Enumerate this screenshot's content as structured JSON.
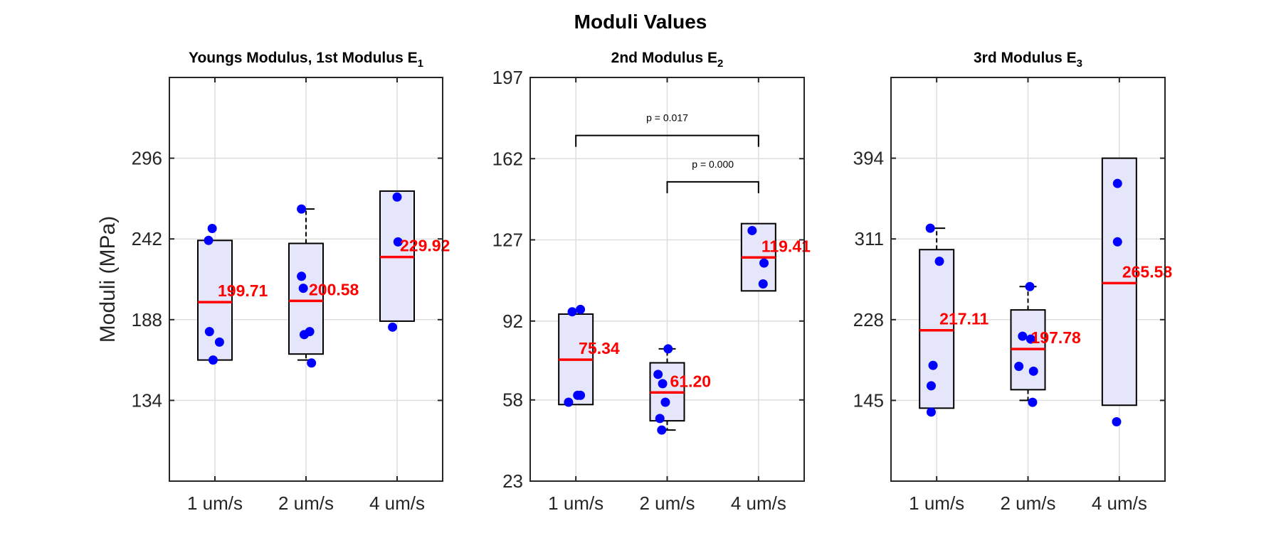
{
  "figure_title": "Moduli Values",
  "colors": {
    "box_fill": "#e6e6fa",
    "box_edge": "#000000",
    "median": "#ff0000",
    "points": "#0000ff",
    "grid": "#dedede"
  },
  "chart_data": [
    {
      "type": "box",
      "title": "Youngs Modulus, 1st Modulus E",
      "title_sub": "1",
      "ylabel": "Moduli (MPa)",
      "ylim": [
        80,
        350
      ],
      "yticks": [
        134,
        188,
        242,
        296
      ],
      "categories": [
        "1 um/s",
        "2 um/s",
        "4 um/s"
      ],
      "grid": true,
      "boxes": [
        {
          "q1": 161,
          "q3": 241,
          "median": 199.71,
          "whisker_low": 161,
          "whisker_high": 241
        },
        {
          "q1": 165,
          "q3": 239,
          "median": 200.58,
          "whisker_low": 161,
          "whisker_high": 262
        },
        {
          "q1": 187,
          "q3": 274,
          "median": 229.92,
          "whisker_low": 187,
          "whisker_high": 274
        }
      ],
      "points": [
        [
          {
            "jitter": -0.03,
            "y": 249
          },
          {
            "jitter": -0.07,
            "y": 241
          },
          {
            "jitter": -0.06,
            "y": 180
          },
          {
            "jitter": 0.05,
            "y": 173
          },
          {
            "jitter": -0.02,
            "y": 161
          }
        ],
        [
          {
            "jitter": -0.05,
            "y": 262
          },
          {
            "jitter": -0.05,
            "y": 217
          },
          {
            "jitter": -0.03,
            "y": 209
          },
          {
            "jitter": 0.04,
            "y": 180
          },
          {
            "jitter": -0.02,
            "y": 178
          },
          {
            "jitter": 0.06,
            "y": 159
          }
        ],
        [
          {
            "jitter": 0.0,
            "y": 270
          },
          {
            "jitter": 0.01,
            "y": 240
          },
          {
            "jitter": -0.05,
            "y": 183
          }
        ]
      ],
      "median_labels": [
        "199.71",
        "200.58",
        "229.92"
      ],
      "significance": []
    },
    {
      "type": "box",
      "title": "2nd Modulus E",
      "title_sub": "2",
      "ylabel": "",
      "ylim": [
        23,
        197
      ],
      "yticks": [
        23,
        58,
        92,
        127,
        162,
        197
      ],
      "categories": [
        "1 um/s",
        "2 um/s",
        "4 um/s"
      ],
      "grid": true,
      "boxes": [
        {
          "q1": 56,
          "q3": 95,
          "median": 75.34,
          "whisker_low": 56,
          "whisker_high": 95
        },
        {
          "q1": 49,
          "q3": 74,
          "median": 61.2,
          "whisker_low": 45,
          "whisker_high": 80
        },
        {
          "q1": 105,
          "q3": 134,
          "median": 119.41,
          "whisker_low": 105,
          "whisker_high": 134
        }
      ],
      "points": [
        [
          {
            "jitter": 0.05,
            "y": 97
          },
          {
            "jitter": -0.04,
            "y": 96
          },
          {
            "jitter": 0.05,
            "y": 60
          },
          {
            "jitter": 0.02,
            "y": 60
          },
          {
            "jitter": -0.08,
            "y": 57
          }
        ],
        [
          {
            "jitter": 0.01,
            "y": 80
          },
          {
            "jitter": -0.1,
            "y": 69
          },
          {
            "jitter": -0.05,
            "y": 65
          },
          {
            "jitter": -0.02,
            "y": 57
          },
          {
            "jitter": -0.08,
            "y": 50
          },
          {
            "jitter": -0.06,
            "y": 45
          }
        ],
        [
          {
            "jitter": -0.07,
            "y": 131
          },
          {
            "jitter": 0.06,
            "y": 117
          },
          {
            "jitter": 0.05,
            "y": 108
          }
        ]
      ],
      "median_labels": [
        "75.34",
        "61.20",
        "119.41"
      ],
      "significance": [
        {
          "from": 0,
          "to": 2,
          "label": "p = 0.017",
          "y": 172
        },
        {
          "from": 1,
          "to": 2,
          "label": "p = 0.000",
          "y": 152
        }
      ]
    },
    {
      "type": "box",
      "title": "3rd Modulus E",
      "title_sub": "3",
      "ylabel": "",
      "ylim": [
        62,
        477
      ],
      "yticks": [
        145,
        228,
        311,
        394
      ],
      "categories": [
        "1 um/s",
        "2 um/s",
        "4 um/s"
      ],
      "grid": true,
      "boxes": [
        {
          "q1": 137,
          "q3": 300,
          "median": 217.11,
          "whisker_low": 137,
          "whisker_high": 322
        },
        {
          "q1": 156,
          "q3": 238,
          "median": 197.78,
          "whisker_low": 145,
          "whisker_high": 262
        },
        {
          "q1": 140,
          "q3": 394,
          "median": 265.58,
          "whisker_low": 140,
          "whisker_high": 394
        }
      ],
      "points": [
        [
          {
            "jitter": -0.07,
            "y": 322
          },
          {
            "jitter": 0.03,
            "y": 288
          },
          {
            "jitter": -0.04,
            "y": 181
          },
          {
            "jitter": -0.06,
            "y": 160
          },
          {
            "jitter": -0.06,
            "y": 133
          }
        ],
        [
          {
            "jitter": 0.02,
            "y": 262
          },
          {
            "jitter": -0.06,
            "y": 211
          },
          {
            "jitter": 0.03,
            "y": 208
          },
          {
            "jitter": -0.1,
            "y": 180
          },
          {
            "jitter": 0.06,
            "y": 175
          },
          {
            "jitter": 0.05,
            "y": 143
          }
        ],
        [
          {
            "jitter": -0.02,
            "y": 368
          },
          {
            "jitter": -0.02,
            "y": 308
          },
          {
            "jitter": -0.03,
            "y": 123
          }
        ]
      ],
      "median_labels": [
        "217.11",
        "197.78",
        "265.58"
      ],
      "significance": []
    }
  ]
}
